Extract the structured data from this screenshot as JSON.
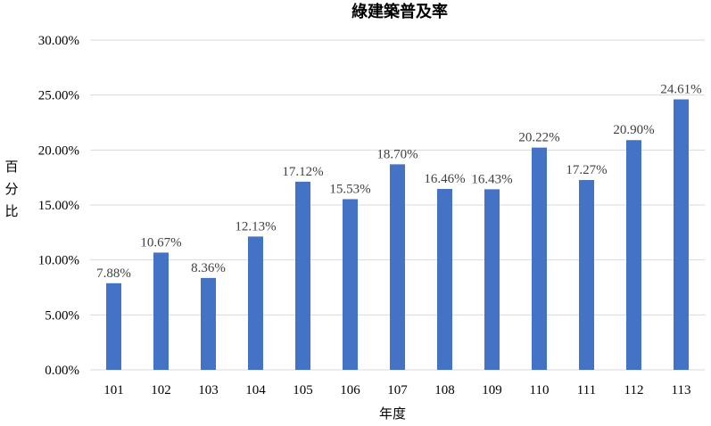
{
  "chart_data": {
    "type": "bar",
    "title": "綠建築普及率",
    "xlabel": "年度",
    "ylabel": "百分比",
    "categories": [
      "101",
      "102",
      "103",
      "104",
      "105",
      "106",
      "107",
      "108",
      "109",
      "110",
      "111",
      "112",
      "113"
    ],
    "values": [
      7.88,
      10.67,
      8.36,
      12.13,
      17.12,
      15.53,
      18.7,
      16.46,
      16.43,
      20.22,
      17.27,
      20.9,
      24.61
    ],
    "data_labels": [
      "7.88%",
      "10.67%",
      "8.36%",
      "12.13%",
      "17.12%",
      "15.53%",
      "18.70%",
      "16.46%",
      "16.43%",
      "20.22%",
      "17.27%",
      "20.90%",
      "24.61%"
    ],
    "y_ticks": [
      0,
      5,
      10,
      15,
      20,
      25,
      30
    ],
    "y_tick_labels": [
      "0.00%",
      "5.00%",
      "10.00%",
      "15.00%",
      "20.00%",
      "25.00%",
      "30.00%"
    ],
    "ylim": [
      0,
      30
    ],
    "grid": true,
    "legend": "none",
    "colors": {
      "bar": "#4472C4",
      "grid": "#D9D9D9",
      "label": "#404040"
    }
  }
}
